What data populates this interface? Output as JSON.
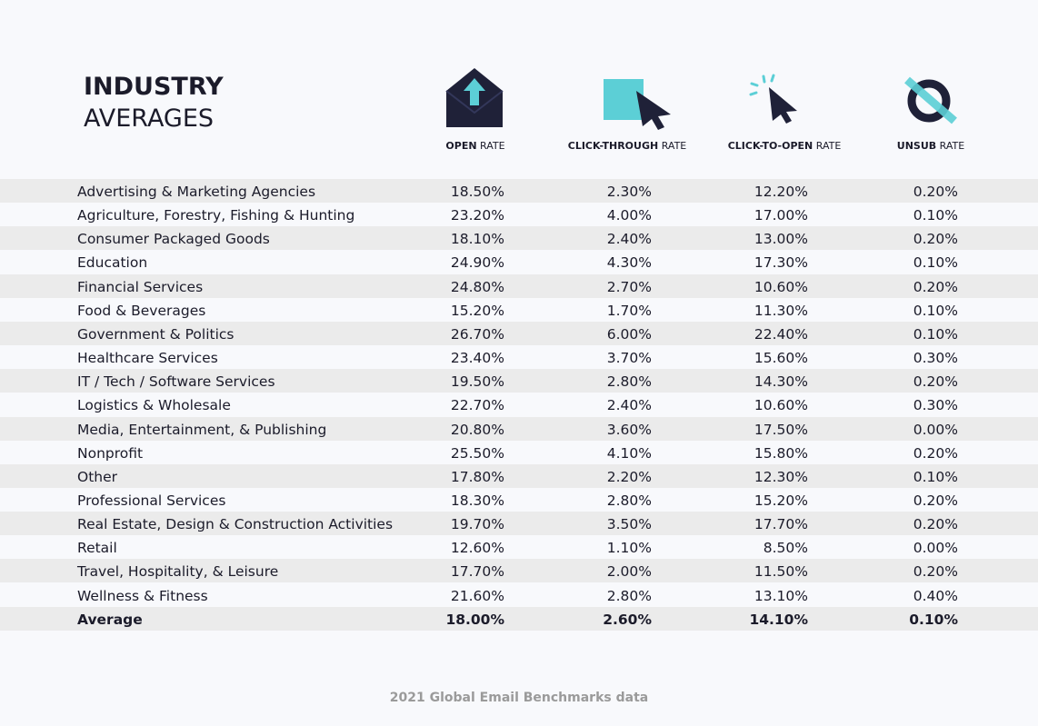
{
  "title": {
    "line1": "INDUSTRY",
    "line2": "AVERAGES"
  },
  "columns": [
    {
      "bold": "OPEN",
      "rest": "RATE"
    },
    {
      "bold": "CLICK-THROUGH",
      "rest": "RATE"
    },
    {
      "bold": "CLICK-TO-OPEN",
      "rest": "RATE"
    },
    {
      "bold": "UNSUB",
      "rest": "RATE"
    }
  ],
  "table": {
    "rows": [
      [
        "Advertising & Marketing Agencies",
        "18.50%",
        "2.30%",
        "12.20%",
        "0.20%"
      ],
      [
        "Agriculture, Forestry, Fishing & Hunting",
        "23.20%",
        "4.00%",
        "17.00%",
        "0.10%"
      ],
      [
        "Consumer Packaged Goods",
        "18.10%",
        "2.40%",
        "13.00%",
        "0.20%"
      ],
      [
        "Education",
        "24.90%",
        "4.30%",
        "17.30%",
        "0.10%"
      ],
      [
        "Financial Services",
        "24.80%",
        "2.70%",
        "10.60%",
        "0.20%"
      ],
      [
        "Food & Beverages",
        "15.20%",
        "1.70%",
        "11.30%",
        "0.10%"
      ],
      [
        "Government & Politics",
        "26.70%",
        "6.00%",
        "22.40%",
        "0.10%"
      ],
      [
        "Healthcare Services",
        "23.40%",
        "3.70%",
        "15.60%",
        "0.30%"
      ],
      [
        "IT / Tech / Software Services",
        "19.50%",
        "2.80%",
        "14.30%",
        "0.20%"
      ],
      [
        "Logistics & Wholesale",
        "22.70%",
        "2.40%",
        "10.60%",
        "0.30%"
      ],
      [
        "Media, Entertainment, & Publishing",
        "20.80%",
        "3.60%",
        "17.50%",
        "0.00%"
      ],
      [
        "Nonprofit",
        "25.50%",
        "4.10%",
        "15.80%",
        "0.20%"
      ],
      [
        "Other",
        "17.80%",
        "2.20%",
        "12.30%",
        "0.10%"
      ],
      [
        "Professional Services",
        "18.30%",
        "2.80%",
        "15.20%",
        "0.20%"
      ],
      [
        "Real Estate, Design & Construction Activities",
        "19.70%",
        "3.50%",
        "17.70%",
        "0.20%"
      ],
      [
        "Retail",
        "12.60%",
        "1.10%",
        "8.50%",
        "0.00%"
      ],
      [
        "Travel, Hospitality, & Leisure",
        "17.70%",
        "2.00%",
        "11.50%",
        "0.20%"
      ],
      [
        "Wellness & Fitness",
        "21.60%",
        "2.80%",
        "13.10%",
        "0.40%"
      ]
    ],
    "average": [
      "Average",
      "18.00%",
      "2.60%",
      "14.10%",
      "0.10%"
    ]
  },
  "footer": "2021 Global Email Benchmarks data"
}
